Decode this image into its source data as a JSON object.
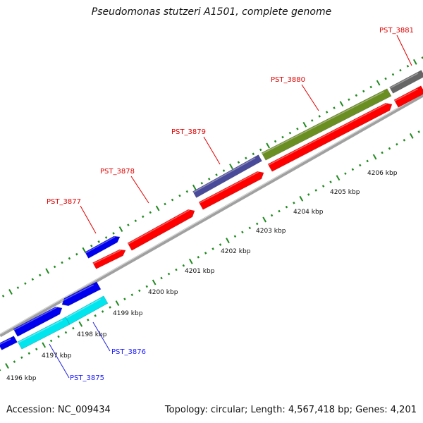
{
  "title": "Pseudomonas stutzeri A1501, complete genome",
  "footer": {
    "accession": "Accession: NC_009434",
    "summary": "Topology: circular; Length: 4,567,418 bp; Genes: 4,201"
  },
  "scale_labels": [
    {
      "label": "4196 kbp",
      "kbp": 4196
    },
    {
      "label": "4197 kbp",
      "kbp": 4197
    },
    {
      "label": "4198 kbp",
      "kbp": 4198
    },
    {
      "label": "4199 kbp",
      "kbp": 4199
    },
    {
      "label": "4200 kbp",
      "kbp": 4200
    },
    {
      "label": "4201 kbp",
      "kbp": 4201
    },
    {
      "label": "4202 kbp",
      "kbp": 4202
    },
    {
      "label": "4203 kbp",
      "kbp": 4203
    },
    {
      "label": "4204 kbp",
      "kbp": 4204
    },
    {
      "label": "4205 kbp",
      "kbp": 4205
    },
    {
      "label": "4206 kbp",
      "kbp": 4206
    }
  ],
  "gene_labels": [
    {
      "label": "PST_3875",
      "color": "#1a1aff"
    },
    {
      "label": "PST_3876",
      "color": "#1a1aff"
    },
    {
      "label": "PST_3877",
      "color": "#e00000"
    },
    {
      "label": "PST_3878",
      "color": "#e00000"
    },
    {
      "label": "PST_3879",
      "color": "#e00000"
    },
    {
      "label": "PST_3880",
      "color": "#e00000"
    },
    {
      "label": "PST_3881",
      "color": "#e00000"
    }
  ],
  "colors": {
    "cds": "#ff0000",
    "gene_blue": "#0000ee",
    "gene_cyan": "#00e5ee",
    "gene_slate": "#4a4a9a",
    "gene_olive": "#6b8e23",
    "gene_gray": "#666666",
    "backbone": "#a0a0a0",
    "tick": "#1f8a1f"
  }
}
